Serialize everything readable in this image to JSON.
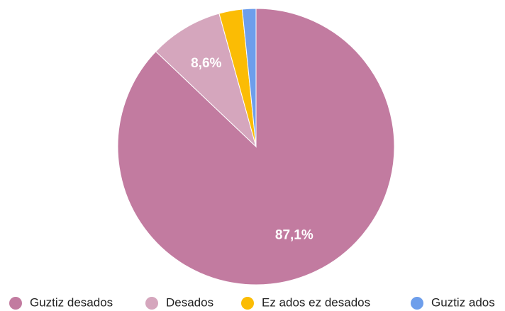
{
  "chart_data": {
    "type": "pie",
    "categories": [
      "Guztiz desados",
      "Desados",
      "Ez ados ez desados",
      "Guztiz ados"
    ],
    "values": [
      87.1,
      8.6,
      2.7,
      1.6
    ],
    "value_labels": [
      "87,1%",
      "8,6%",
      null,
      null
    ],
    "colors": [
      "#c27ba0",
      "#d5a6bd",
      "#fbbc04",
      "#6d9eeb"
    ],
    "legend": "bottom"
  }
}
